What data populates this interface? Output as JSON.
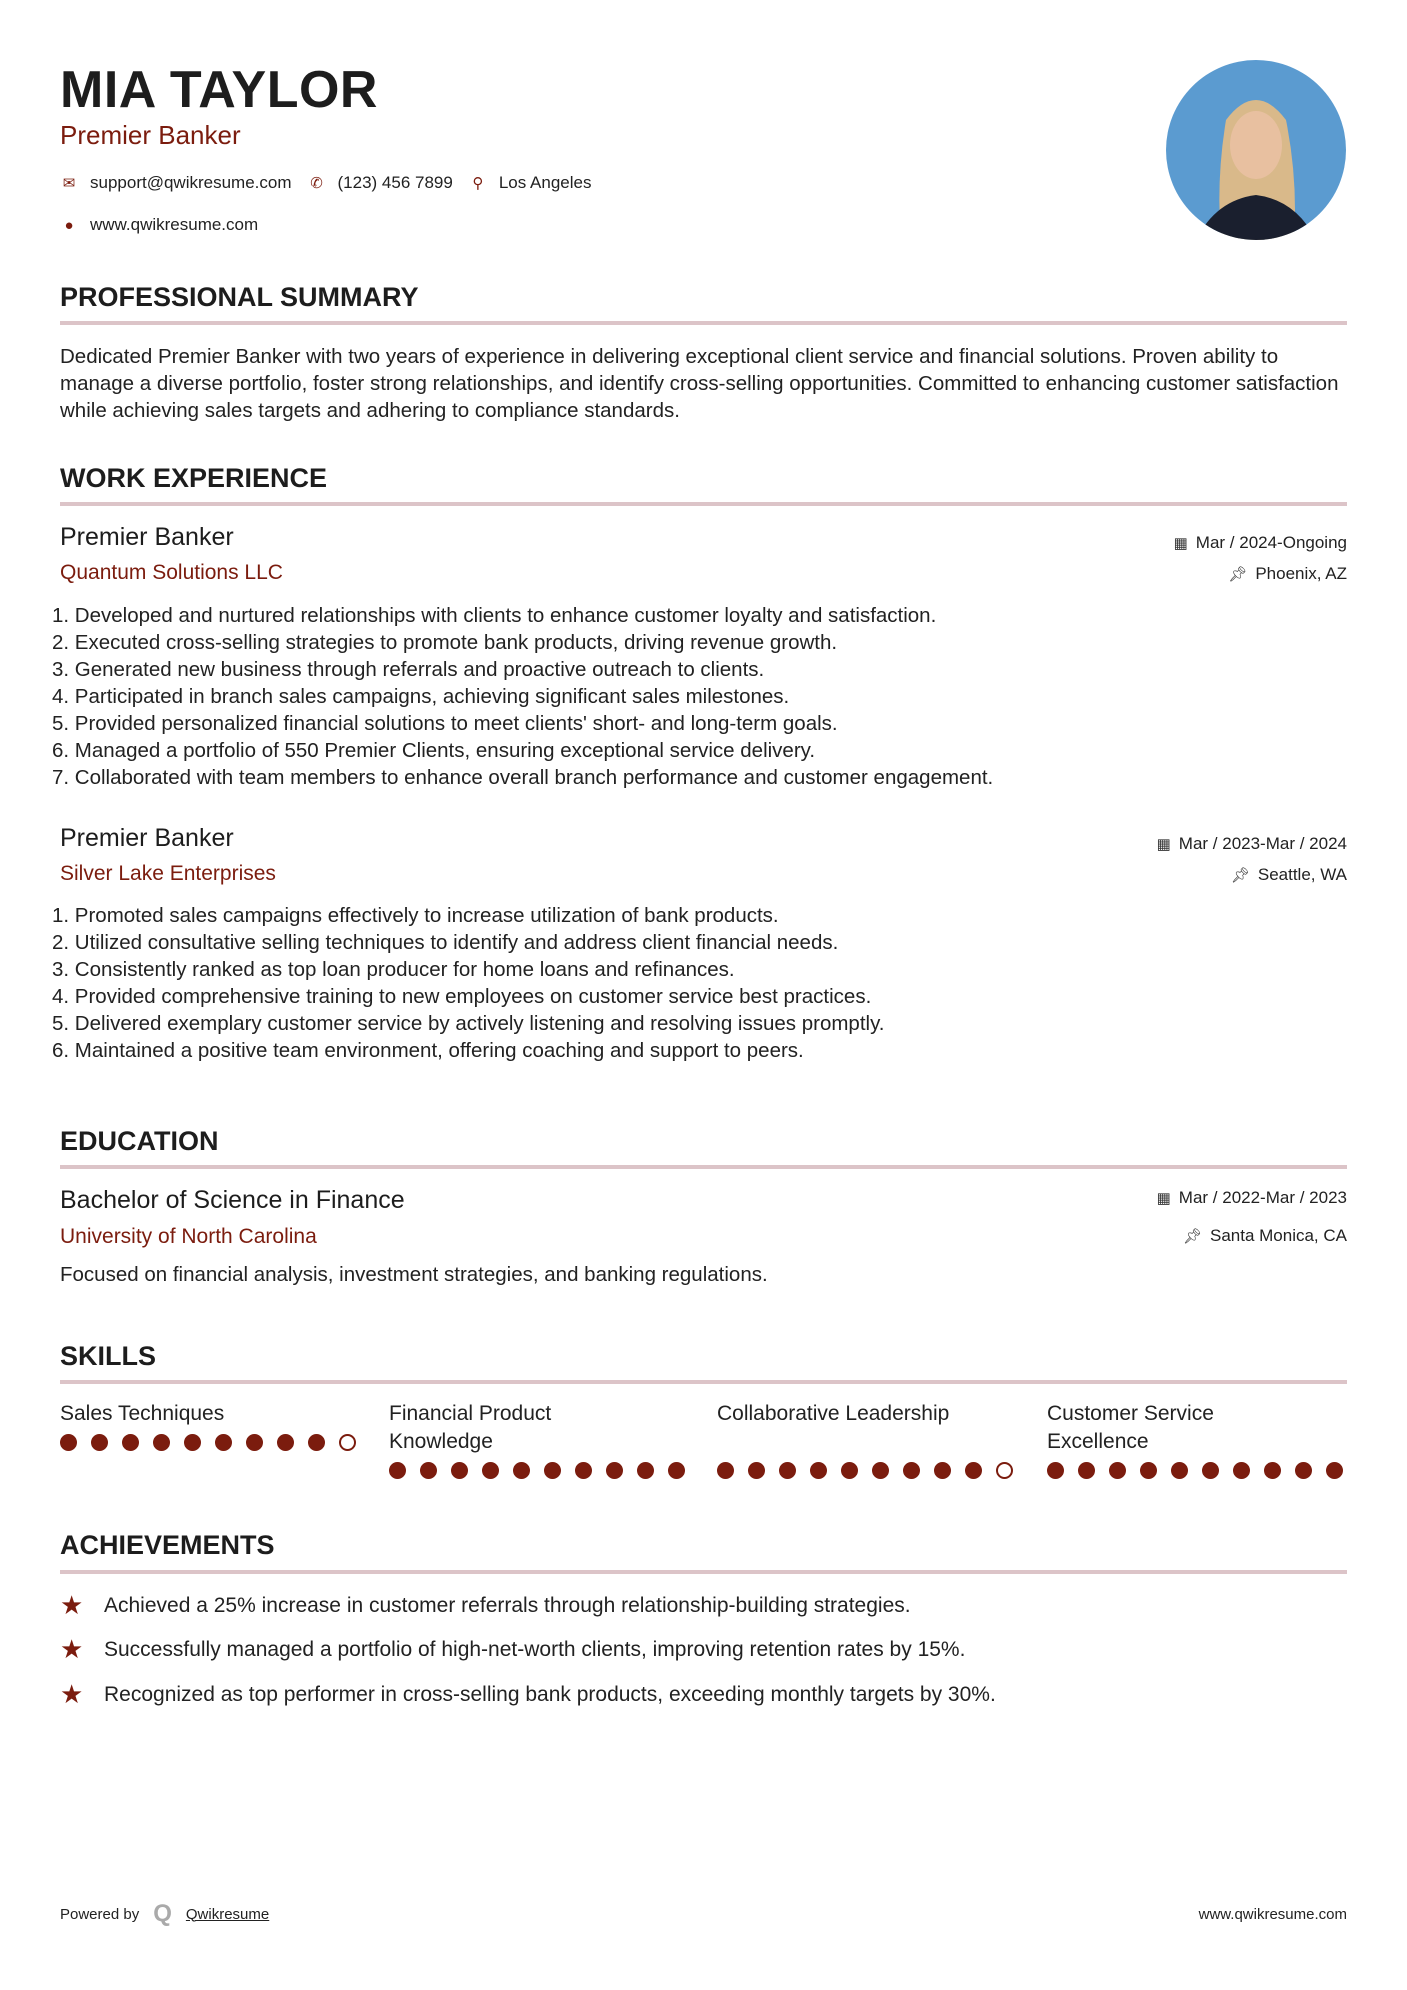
{
  "header": {
    "name": "MIA TAYLOR",
    "title": "Premier Banker",
    "email": "support@qwikresume.com",
    "phone": "(123) 456 7899",
    "location": "Los Angeles",
    "website": "www.qwikresume.com"
  },
  "summary": {
    "heading": "PROFESSIONAL SUMMARY",
    "text": "Dedicated Premier Banker with two years of experience in delivering exceptional client service and financial solutions. Proven ability to manage a diverse portfolio, foster strong relationships, and identify cross-selling opportunities. Committed to enhancing customer satisfaction while achieving sales targets and adhering to compliance standards."
  },
  "experience": {
    "heading": "WORK EXPERIENCE",
    "jobs": [
      {
        "title": "Premier Banker",
        "company": "Quantum Solutions LLC",
        "date": "Mar / 2024-Ongoing",
        "location": "Phoenix, AZ",
        "bullets": [
          "1. Developed and nurtured relationships with clients to enhance customer loyalty and satisfaction.",
          "2. Executed cross-selling strategies to promote bank products, driving revenue growth.",
          "3. Generated new business through referrals and proactive outreach to clients.",
          "4. Participated in branch sales campaigns, achieving significant sales milestones.",
          "5. Provided personalized financial solutions to meet clients' short- and long-term goals.",
          "6. Managed a portfolio of 550 Premier Clients, ensuring exceptional service delivery.",
          "7. Collaborated with team members to enhance overall branch performance and customer engagement."
        ]
      },
      {
        "title": "Premier Banker",
        "company": "Silver Lake Enterprises",
        "date": "Mar / 2023-Mar / 2024",
        "location": "Seattle, WA",
        "bullets": [
          "1. Promoted sales campaigns effectively to increase utilization of bank products.",
          "2. Utilized consultative selling techniques to identify and address client financial needs.",
          "3. Consistently ranked as top loan producer for home loans and refinances.",
          "4. Provided comprehensive training to new employees on customer service best practices.",
          "5. Delivered exemplary customer service by actively listening and resolving issues promptly.",
          "6. Maintained a positive team environment, offering coaching and support to peers."
        ]
      }
    ]
  },
  "education": {
    "heading": "EDUCATION",
    "degree": "Bachelor of Science in Finance",
    "school": "University of North Carolina",
    "date": "Mar / 2022-Mar / 2023",
    "location": "Santa Monica, CA",
    "description": "Focused on financial analysis, investment strategies, and banking regulations."
  },
  "skills": {
    "heading": "SKILLS",
    "items": [
      {
        "name": "Sales Techniques",
        "level": 9,
        "max": 10
      },
      {
        "name": "Financial Product Knowledge",
        "level": 10,
        "max": 10
      },
      {
        "name": "Collaborative Leadership",
        "level": 9,
        "max": 10
      },
      {
        "name": "Customer Service Excellence",
        "level": 10,
        "max": 10
      }
    ]
  },
  "achievements": {
    "heading": "ACHIEVEMENTS",
    "items": [
      "Achieved a 25% increase in customer referrals through relationship-building strategies.",
      "Successfully managed a portfolio of high-net-worth clients, improving retention rates by 15%.",
      "Recognized as top performer in cross-selling bank products, exceeding monthly targets by 30%."
    ]
  },
  "footer": {
    "powered_by": "Powered by",
    "brand": "Qwikresume",
    "website": "www.qwikresume.com"
  },
  "colors": {
    "accent": "#7b1c0e",
    "rule": "#dcc4c8"
  }
}
